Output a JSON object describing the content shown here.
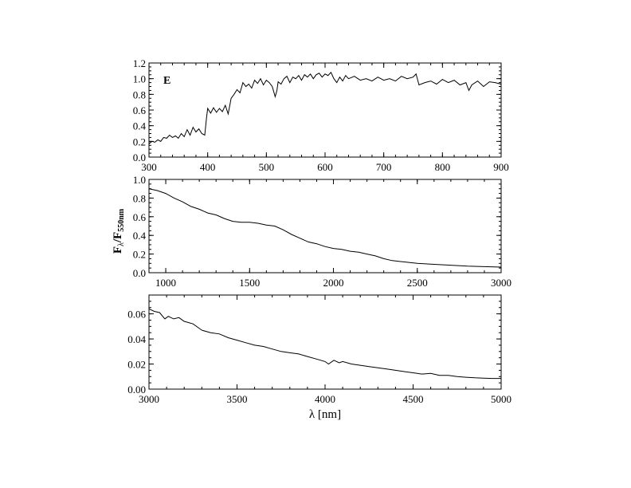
{
  "chart_data": [
    {
      "type": "line",
      "panel_label": "E",
      "xlim": [
        300,
        900
      ],
      "ylim": [
        0.0,
        1.2
      ],
      "xticks": [
        "300",
        "400",
        "500",
        "600",
        "700",
        "800",
        "900"
      ],
      "yticks": [
        "0.0",
        "0.2",
        "0.4",
        "0.6",
        "0.8",
        "1.0",
        "1.2"
      ],
      "grid": false,
      "series": [
        {
          "x": [
            300,
            305,
            310,
            315,
            320,
            325,
            330,
            335,
            340,
            345,
            350,
            355,
            360,
            365,
            370,
            375,
            380,
            385,
            390,
            395,
            398,
            400,
            405,
            410,
            415,
            420,
            425,
            430,
            435,
            440,
            445,
            450,
            455,
            460,
            465,
            470,
            475,
            480,
            485,
            490,
            495,
            500,
            505,
            510,
            515,
            518,
            520,
            525,
            530,
            535,
            540,
            545,
            550,
            555,
            560,
            565,
            570,
            575,
            580,
            585,
            590,
            595,
            600,
            605,
            610,
            615,
            620,
            625,
            630,
            635,
            640,
            650,
            660,
            670,
            680,
            690,
            700,
            710,
            720,
            730,
            740,
            750,
            755,
            760,
            770,
            780,
            790,
            800,
            810,
            820,
            830,
            840,
            845,
            850,
            860,
            870,
            880,
            890,
            900
          ],
          "y": [
            0.17,
            0.2,
            0.19,
            0.22,
            0.2,
            0.25,
            0.24,
            0.28,
            0.25,
            0.27,
            0.24,
            0.3,
            0.26,
            0.35,
            0.28,
            0.38,
            0.32,
            0.36,
            0.3,
            0.28,
            0.5,
            0.62,
            0.56,
            0.63,
            0.57,
            0.62,
            0.58,
            0.66,
            0.55,
            0.75,
            0.8,
            0.86,
            0.82,
            0.95,
            0.9,
            0.93,
            0.88,
            0.98,
            0.94,
            1.0,
            0.92,
            0.98,
            0.95,
            0.9,
            0.77,
            0.85,
            0.96,
            0.93,
            1.0,
            1.03,
            0.95,
            1.02,
            1.0,
            1.04,
            0.98,
            1.05,
            1.02,
            1.06,
            1.0,
            1.05,
            1.07,
            1.02,
            1.06,
            1.04,
            1.08,
            1.0,
            0.95,
            1.02,
            0.97,
            1.04,
            1.0,
            1.03,
            0.98,
            1.0,
            0.97,
            1.02,
            0.98,
            1.0,
            0.97,
            1.03,
            1.0,
            1.02,
            1.06,
            0.92,
            0.95,
            0.97,
            0.93,
            0.99,
            0.95,
            0.98,
            0.92,
            0.95,
            0.85,
            0.92,
            0.97,
            0.9,
            0.96,
            0.95,
            0.93
          ]
        }
      ]
    },
    {
      "type": "line",
      "xlim": [
        900,
        3000
      ],
      "ylim": [
        0.0,
        1.0
      ],
      "xticks": [
        "1000",
        "1500",
        "2000",
        "2500",
        "3000"
      ],
      "yticks": [
        "0.0",
        "0.2",
        "0.4",
        "0.6",
        "0.8",
        "1.0"
      ],
      "grid": false,
      "series": [
        {
          "x": [
            900,
            950,
            1000,
            1050,
            1100,
            1150,
            1200,
            1250,
            1300,
            1350,
            1400,
            1450,
            1500,
            1550,
            1600,
            1650,
            1700,
            1750,
            1800,
            1850,
            1900,
            1950,
            2000,
            2050,
            2100,
            2150,
            2200,
            2250,
            2300,
            2350,
            2400,
            2450,
            2500,
            2600,
            2700,
            2800,
            2900,
            3000
          ],
          "y": [
            0.9,
            0.88,
            0.85,
            0.8,
            0.76,
            0.71,
            0.68,
            0.64,
            0.62,
            0.58,
            0.55,
            0.54,
            0.54,
            0.53,
            0.51,
            0.5,
            0.46,
            0.41,
            0.37,
            0.33,
            0.31,
            0.28,
            0.26,
            0.25,
            0.23,
            0.22,
            0.2,
            0.18,
            0.15,
            0.13,
            0.12,
            0.11,
            0.1,
            0.09,
            0.08,
            0.07,
            0.065,
            0.06
          ]
        }
      ]
    },
    {
      "type": "line",
      "xlabel": "λ [nm]",
      "xlim": [
        3000,
        5000
      ],
      "ylim": [
        0.0,
        0.075
      ],
      "xticks": [
        "3000",
        "3500",
        "4000",
        "4500",
        "5000"
      ],
      "yticks": [
        "0.00",
        "0.02",
        "0.04",
        "0.06"
      ],
      "grid": false,
      "series": [
        {
          "x": [
            3000,
            3030,
            3060,
            3090,
            3110,
            3140,
            3170,
            3200,
            3250,
            3300,
            3350,
            3400,
            3450,
            3500,
            3550,
            3600,
            3650,
            3700,
            3750,
            3800,
            3850,
            3900,
            3950,
            4000,
            4020,
            4050,
            4080,
            4100,
            4150,
            4200,
            4250,
            4300,
            4350,
            4400,
            4450,
            4500,
            4550,
            4600,
            4650,
            4700,
            4750,
            4800,
            4850,
            4900,
            4950,
            5000
          ],
          "y": [
            0.064,
            0.062,
            0.061,
            0.056,
            0.058,
            0.056,
            0.057,
            0.054,
            0.052,
            0.047,
            0.045,
            0.044,
            0.041,
            0.039,
            0.037,
            0.035,
            0.034,
            0.032,
            0.03,
            0.029,
            0.028,
            0.026,
            0.024,
            0.022,
            0.02,
            0.023,
            0.021,
            0.022,
            0.02,
            0.019,
            0.018,
            0.017,
            0.016,
            0.015,
            0.014,
            0.013,
            0.012,
            0.0125,
            0.011,
            0.011,
            0.01,
            0.0095,
            0.009,
            0.0088,
            0.0085,
            0.0085
          ]
        }
      ]
    }
  ],
  "ylabel_main": "F",
  "ylabel_sub1": "λ",
  "ylabel_mid": "/F",
  "ylabel_sub2": "550nm"
}
